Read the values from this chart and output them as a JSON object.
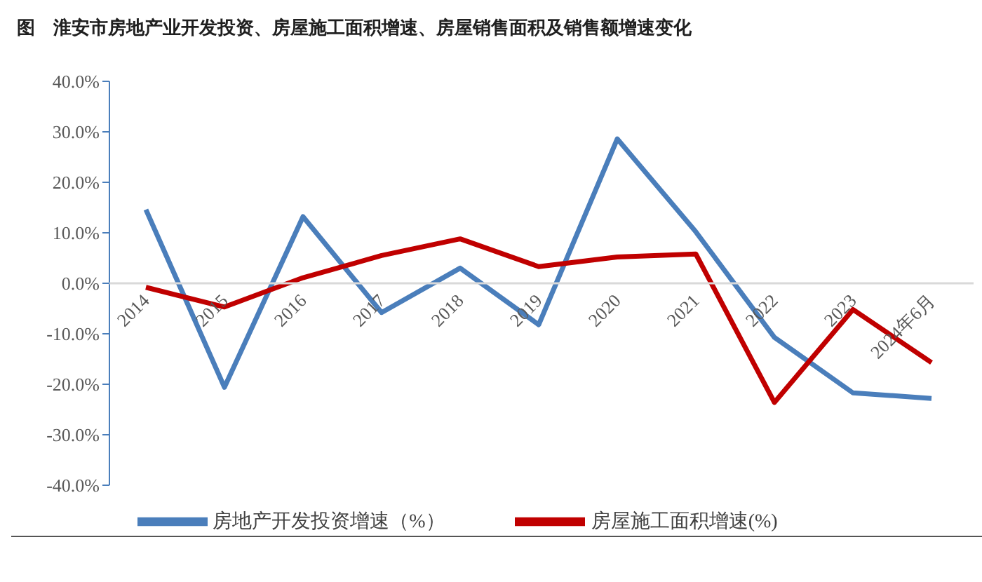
{
  "chart_data": {
    "type": "line",
    "title": "图　淮安市房地产业开发投资、房屋施工面积增速、房屋销售面积及销售额增速变化",
    "categories": [
      "2014",
      "2015",
      "2016",
      "2017",
      "2018",
      "2019",
      "2020",
      "2021",
      "2022",
      "2023",
      "2024年6月"
    ],
    "series": [
      {
        "name": "房地产开发投资增速（%）",
        "color": "#4a7ebb",
        "values": [
          14.6,
          -20.6,
          13.2,
          -5.8,
          3.0,
          -8.2,
          28.6,
          10.2,
          -10.7,
          -21.7,
          -22.8
        ]
      },
      {
        "name": "房屋施工面积增速(%)",
        "color": "#c00000",
        "values": [
          -0.8,
          -4.7,
          1.1,
          5.5,
          8.8,
          3.3,
          5.2,
          5.8,
          -23.6,
          -5.2,
          -15.7
        ]
      }
    ],
    "ylim": [
      -40,
      40
    ],
    "yticks": [
      {
        "value": -40,
        "label": "-40.0%"
      },
      {
        "value": -30,
        "label": "-30.0%"
      },
      {
        "value": -20,
        "label": "-20.0%"
      },
      {
        "value": -10,
        "label": "-10.0%"
      },
      {
        "value": 0,
        "label": "0.0%"
      },
      {
        "value": 10,
        "label": "10.0%"
      },
      {
        "value": 20,
        "label": "20.0%"
      },
      {
        "value": 30,
        "label": "30.0%"
      },
      {
        "value": 40,
        "label": "40.0%"
      }
    ],
    "grid": false,
    "legend": "bottom",
    "marker": "none",
    "line_style": "solid"
  }
}
